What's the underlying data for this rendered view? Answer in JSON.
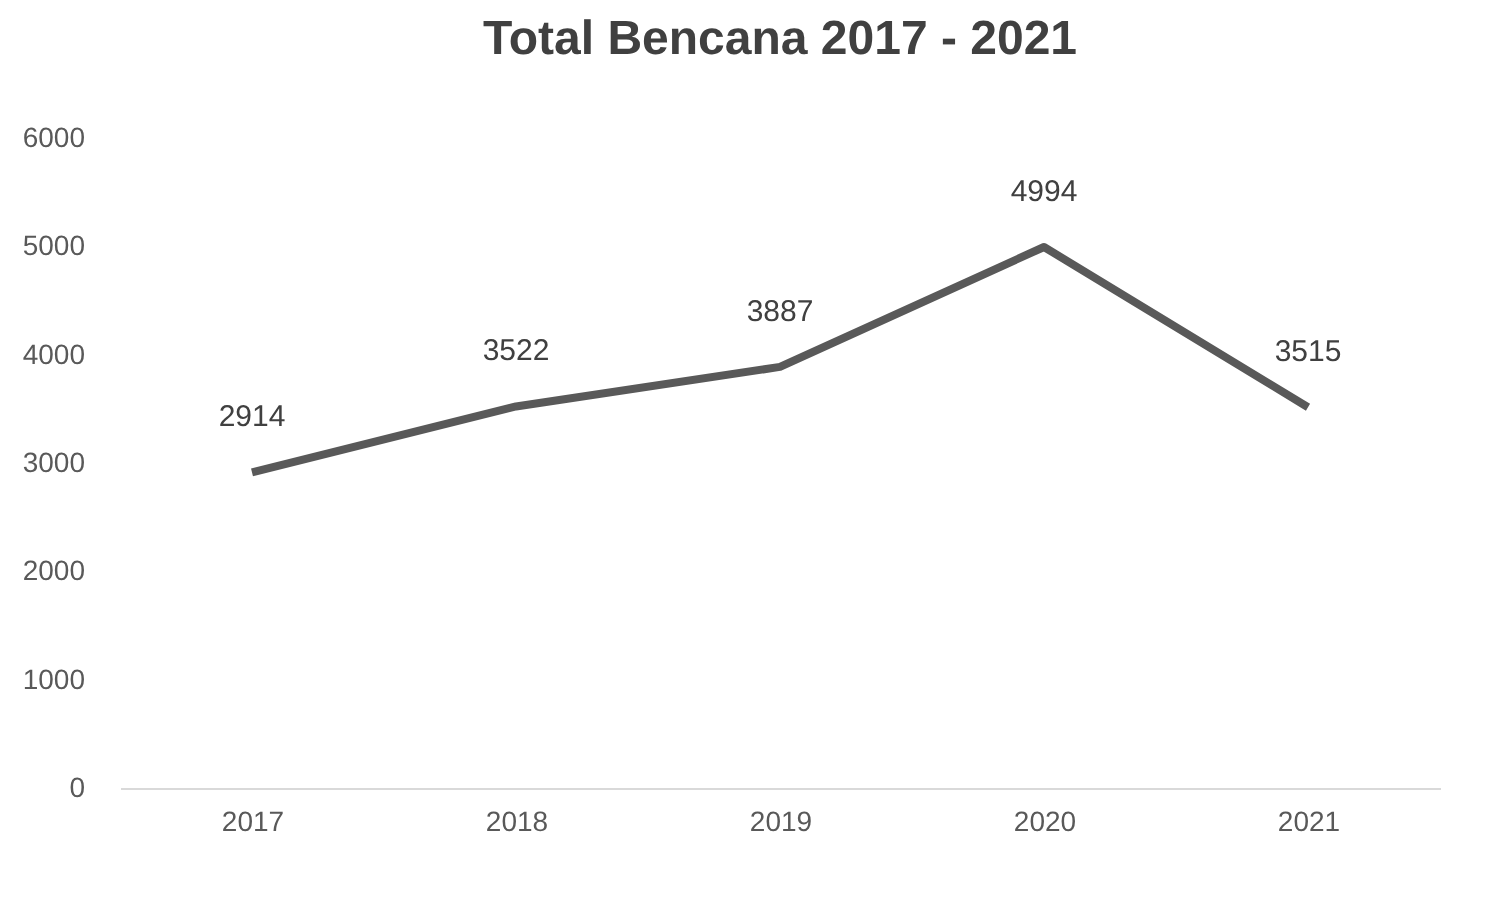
{
  "chart_data": {
    "type": "line",
    "title": "Total Bencana 2017 - 2021",
    "categories": [
      "2017",
      "2018",
      "2019",
      "2020",
      "2021"
    ],
    "series": [
      {
        "color": "#595959",
        "values": [
          2914,
          3522,
          3887,
          4994,
          3515
        ]
      }
    ],
    "ylim": [
      0,
      6000
    ],
    "yticks": [
      0,
      1000,
      2000,
      3000,
      4000,
      5000,
      6000
    ],
    "grid": false,
    "legend": false,
    "marker": "none",
    "line_style": "solid",
    "data_labels": true
  }
}
